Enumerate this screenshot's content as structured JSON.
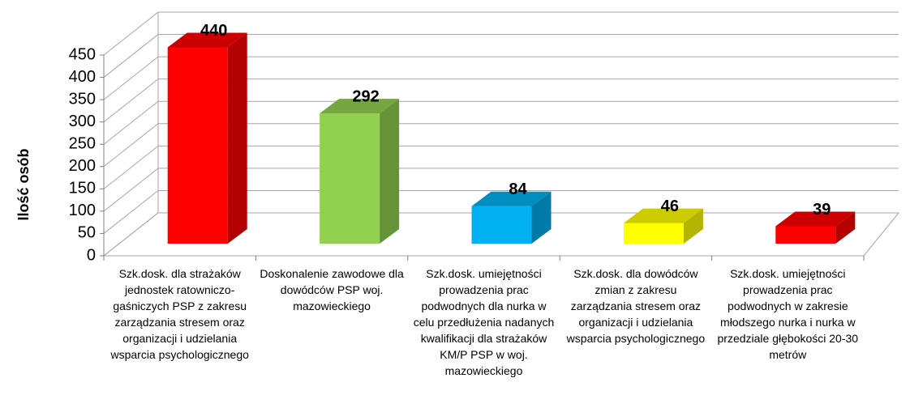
{
  "chart_data": {
    "type": "bar3d",
    "y_label": "Ilość osób",
    "categories": [
      "Szk.dosk. dla strażaków jednostek ratowniczo-gaśniczych PSP z zakresu zarządzania stresem oraz organizacji i udzielania wsparcia psychologicznego",
      "Doskonalenie zawodowe dla dowódców PSP woj. mazowieckiego",
      "Szk.dosk. umiejętności prowadzenia prac podwodnych dla nurka w celu przedłużenia nadanych kwalifikacji dla strażaków KM/P PSP w woj. mazowieckiego",
      "Szk.dosk. dla dowódców zmian z zakresu zarządzania stresem oraz organizacji i udzielania wsparcia psychologicznego",
      "Szk.dosk. umiejętności prowadzenia prac podwodnych w zakresie młodszego nurka i nurka w przedziale głębokości 20-30 metrów"
    ],
    "values": [
      440,
      292,
      84,
      46,
      39
    ],
    "colors": [
      "#ff0000",
      "#92d050",
      "#00b0f0",
      "#ffff00",
      "#ff0000"
    ],
    "ylim": [
      0,
      450
    ],
    "yticks": [
      0,
      50,
      100,
      150,
      200,
      250,
      300,
      350,
      400,
      450
    ],
    "grid": true
  }
}
